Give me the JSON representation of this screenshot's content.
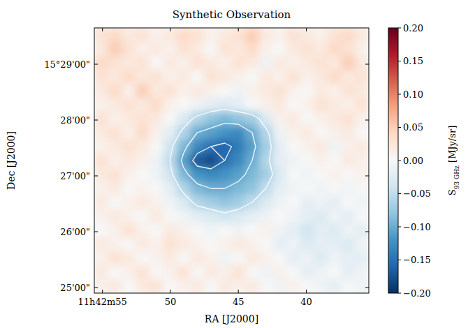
{
  "chart_data": {
    "type": "heatmap",
    "title": "Synthetic Observation",
    "x_label": "RA [J2000]",
    "y_label": "Dec [J2000]",
    "xlim": [
      55.6,
      35.4
    ],
    "ylim": [
      24.9,
      29.65
    ],
    "xticks": [
      {
        "value": 55,
        "label": "11h42m55"
      },
      50,
      45,
      40
    ],
    "yticks": [
      {
        "value": 25,
        "label": "25'00\""
      },
      {
        "value": 26,
        "label": "26'00\""
      },
      {
        "value": 27,
        "label": "27'00\""
      },
      {
        "value": 28,
        "label": "28'00\""
      },
      {
        "value": 29,
        "label": "15°29'00\""
      }
    ],
    "colorbar_label": [
      "S",
      "93 GHz",
      " [MJy/sr]"
    ],
    "colorbar_range": [
      -0.2,
      0.2
    ],
    "colorbar_ticks": [
      {
        "value": -0.2,
        "label": "−0.20"
      },
      {
        "value": -0.15,
        "label": "−0.15"
      },
      {
        "value": -0.1,
        "label": "−0.10"
      },
      {
        "value": -0.05,
        "label": "−0.05"
      },
      {
        "value": 0,
        "label": "0.00"
      },
      {
        "value": 0.05,
        "label": "0.05"
      },
      {
        "value": 0.1,
        "label": "0.10"
      },
      {
        "value": 0.15,
        "label": "0.15"
      },
      {
        "value": 0.2,
        "label": "0.20"
      }
    ],
    "contour_levels": [
      -0.15,
      -0.1,
      -0.05
    ],
    "cells": [
      [
        0.03,
        0.04,
        0.02,
        0.03,
        0.01,
        0.02,
        0.04,
        0.03,
        0.01,
        0.02,
        0.03,
        0.05,
        0.02,
        0.01,
        0.03,
        0.02,
        0.01,
        0.03,
        0.04,
        0.02
      ],
      [
        0.02,
        0.05,
        0.03,
        0.01,
        0.02,
        0.01,
        0.03,
        0.02,
        0.0,
        0.03,
        0.02,
        0.04,
        0.01,
        0.0,
        0.02,
        0.03,
        0.02,
        0.04,
        0.03,
        0.01
      ],
      [
        0.04,
        0.03,
        0.02,
        0.03,
        0.0,
        0.02,
        0.01,
        0.03,
        0.02,
        0.01,
        0.03,
        0.02,
        -0.01,
        0.02,
        0.01,
        0.02,
        0.03,
        0.02,
        0.05,
        0.02
      ],
      [
        0.03,
        0.02,
        0.04,
        0.02,
        0.03,
        0.01,
        0.02,
        0.0,
        0.03,
        0.02,
        0.01,
        0.0,
        0.02,
        0.01,
        0.03,
        0.01,
        0.02,
        0.04,
        0.02,
        0.03
      ],
      [
        0.02,
        0.04,
        0.01,
        0.05,
        0.02,
        0.03,
        0.01,
        0.02,
        0.01,
        0.0,
        -0.01,
        0.01,
        0.02,
        0.03,
        0.01,
        0.0,
        0.02,
        0.01,
        0.03,
        0.02
      ],
      [
        0.01,
        0.02,
        0.03,
        0.02,
        0.04,
        0.01,
        0.0,
        -0.01,
        -0.02,
        -0.03,
        -0.02,
        0.0,
        0.01,
        0.02,
        0.0,
        0.01,
        0.03,
        0.02,
        0.01,
        0.03
      ],
      [
        0.03,
        0.01,
        0.02,
        0.03,
        0.02,
        0.0,
        -0.03,
        -0.06,
        -0.08,
        -0.09,
        -0.08,
        -0.07,
        -0.03,
        0.01,
        0.02,
        0.0,
        0.01,
        0.02,
        0.03,
        0.01
      ],
      [
        0.02,
        0.03,
        0.01,
        0.04,
        0.01,
        -0.02,
        -0.06,
        -0.1,
        -0.11,
        -0.12,
        -0.13,
        -0.1,
        -0.06,
        -0.01,
        0.01,
        0.02,
        0.0,
        0.01,
        0.02,
        0.0
      ],
      [
        0.01,
        0.02,
        0.03,
        0.02,
        0.0,
        -0.04,
        -0.09,
        -0.13,
        -0.15,
        -0.16,
        -0.14,
        -0.11,
        -0.07,
        -0.02,
        0.0,
        0.01,
        0.02,
        -0.01,
        0.01,
        0.02
      ],
      [
        0.03,
        0.01,
        0.02,
        0.01,
        -0.01,
        -0.05,
        -0.11,
        -0.17,
        -0.18,
        -0.15,
        -0.13,
        -0.1,
        -0.06,
        -0.02,
        -0.01,
        0.0,
        0.01,
        0.0,
        0.02,
        0.01
      ],
      [
        0.02,
        0.03,
        0.01,
        0.0,
        -0.01,
        -0.04,
        -0.09,
        -0.12,
        -0.13,
        -0.12,
        -0.11,
        -0.09,
        -0.07,
        -0.03,
        0.0,
        -0.01,
        0.0,
        0.01,
        0.0,
        0.01
      ],
      [
        0.01,
        0.02,
        0.0,
        0.01,
        0.0,
        -0.02,
        -0.06,
        -0.09,
        -0.1,
        -0.1,
        -0.09,
        -0.08,
        -0.05,
        -0.02,
        -0.01,
        0.0,
        -0.01,
        0.0,
        -0.01,
        0.0
      ],
      [
        0.02,
        0.0,
        0.01,
        0.02,
        0.01,
        -0.01,
        -0.03,
        -0.06,
        -0.07,
        -0.08,
        -0.07,
        -0.05,
        -0.03,
        -0.01,
        0.0,
        -0.02,
        -0.01,
        -0.02,
        0.0,
        -0.01
      ],
      [
        0.01,
        0.02,
        0.01,
        0.0,
        0.02,
        0.0,
        -0.01,
        -0.02,
        -0.03,
        -0.04,
        -0.03,
        -0.02,
        -0.01,
        0.0,
        -0.01,
        -0.02,
        -0.03,
        -0.01,
        -0.02,
        0.0
      ],
      [
        0.0,
        0.01,
        0.03,
        0.01,
        0.0,
        0.02,
        0.01,
        0.0,
        -0.01,
        0.0,
        -0.01,
        0.0,
        0.01,
        -0.01,
        -0.02,
        -0.04,
        -0.02,
        -0.03,
        -0.01,
        -0.02
      ],
      [
        0.02,
        0.01,
        0.0,
        0.02,
        0.01,
        0.03,
        0.02,
        0.01,
        0.0,
        0.01,
        0.02,
        0.01,
        0.0,
        -0.02,
        -0.01,
        -0.03,
        -0.02,
        -0.02,
        -0.03,
        -0.01
      ],
      [
        0.01,
        0.03,
        0.02,
        0.0,
        0.01,
        0.02,
        0.0,
        0.02,
        0.01,
        -0.01,
        0.0,
        0.02,
        0.01,
        0.0,
        -0.02,
        -0.01,
        -0.03,
        -0.01,
        -0.02,
        -0.02
      ],
      [
        0.02,
        0.0,
        0.01,
        0.03,
        0.0,
        0.01,
        0.03,
        0.0,
        0.02,
        0.01,
        0.03,
        0.0,
        -0.01,
        0.01,
        0.0,
        -0.02,
        -0.01,
        0.0,
        -0.02,
        -0.01
      ],
      [
        0.01,
        0.02,
        0.0,
        0.02,
        0.03,
        0.0,
        0.01,
        0.02,
        0.0,
        0.02,
        0.01,
        0.02,
        0.0,
        -0.01,
        0.01,
        0.0,
        -0.01,
        -0.02,
        0.0,
        -0.01
      ]
    ]
  }
}
